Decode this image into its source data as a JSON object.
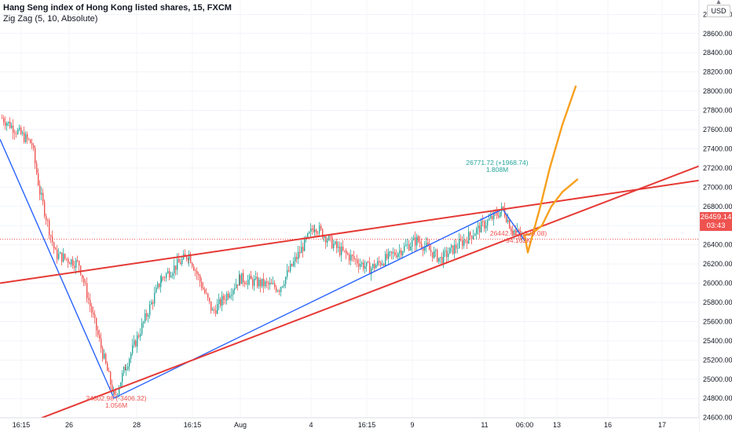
{
  "header": {
    "title": "Hang Seng index of Hong Kong listed shares, 15, FXCM",
    "indicator": "Zig Zag (5, 10, Absolute)"
  },
  "price_scale": {
    "unit": "USD",
    "current_price": "26459.14",
    "countdown": "03:43"
  },
  "colors": {
    "bull": "#26a69a",
    "bear": "#ef5350",
    "trend_red": "#e53935",
    "zigzag_blue": "#2962ff",
    "projection_orange": "#f7a01e",
    "pivot_high_label": "#26a69a",
    "pivot_low_label": "#ef5350",
    "axis_text": "#131722"
  },
  "chart_data": {
    "type": "candlestick",
    "title": "Hang Seng index of Hong Kong listed shares, 15, FXCM",
    "ylabel": "USD",
    "ylim": [
      24450,
      28950
    ],
    "y_ticks": [
      24600,
      24800,
      25000,
      25200,
      25400,
      25600,
      25800,
      26000,
      26200,
      26400,
      26600,
      26800,
      27000,
      27200,
      27400,
      27600,
      27800,
      28000,
      28200,
      28400,
      28600,
      28800
    ],
    "x_labels": [
      "16:15",
      "26",
      "28",
      "16:15",
      "Aug",
      "4",
      "16:15",
      "9",
      "11",
      "06:00",
      "13",
      "16",
      "17"
    ],
    "price_path_keypoints": [
      {
        "x": "16:15",
        "price": 27720
      },
      {
        "x": "26",
        "price": 27450
      },
      {
        "x": "26",
        "price": 26950
      },
      {
        "x": "26",
        "price": 26300
      },
      {
        "x": "26",
        "price": 26200
      },
      {
        "x": "28",
        "price": 24802.98
      },
      {
        "x": "28",
        "price": 25150
      },
      {
        "x": "28",
        "price": 26050
      },
      {
        "x": "16:15",
        "price": 26300
      },
      {
        "x": "16:15",
        "price": 25700
      },
      {
        "x": "Aug",
        "price": 26050
      },
      {
        "x": "Aug",
        "price": 25950
      },
      {
        "x": "4",
        "price": 26600
      },
      {
        "x": "4",
        "price": 26350
      },
      {
        "x": "16:15",
        "price": 26150
      },
      {
        "x": "9",
        "price": 26450
      },
      {
        "x": "9",
        "price": 26250
      },
      {
        "x": "11",
        "price": 26771.72
      },
      {
        "x": "11",
        "price": 26580
      },
      {
        "x": "06:00",
        "price": 26442.64
      }
    ],
    "zigzag": [
      {
        "x": "16:15",
        "price": 27500
      },
      {
        "x": "28",
        "price": 24802.98
      },
      {
        "x": "11",
        "price": 26771.72
      },
      {
        "x": "06:00",
        "price": 26442.64
      }
    ],
    "annotations": [
      {
        "text": "24802.98 (-3406.32)",
        "subtext": "1.056M",
        "price": 24802.98
      },
      {
        "text": "26771.72 (+1968.74)",
        "subtext": "1.808M",
        "price": 26771.72
      },
      {
        "text": "26442.64 (-329.08)",
        "subtext": "94.162K",
        "price": 26442.64
      }
    ],
    "trend_lines": [
      {
        "name": "upper",
        "from": {
          "x": "16:15",
          "price": 26000
        },
        "to": {
          "x": "17",
          "price": 27070
        }
      },
      {
        "name": "lower",
        "from": {
          "x": "26",
          "price": 24550
        },
        "to": {
          "x": "17",
          "price": 27220
        }
      }
    ],
    "projections": [
      {
        "name": "bull-path",
        "points": [
          [
            26500
          ],
          [
            26320
          ],
          [
            26560
          ],
          [
            26800
          ],
          [
            27200
          ],
          [
            27650
          ],
          [
            28050
          ]
        ]
      },
      {
        "name": "alt-path",
        "points": [
          [
            26500
          ],
          [
            26520
          ],
          [
            26600
          ],
          [
            26800
          ],
          [
            26950
          ],
          [
            27080
          ]
        ]
      }
    ]
  }
}
